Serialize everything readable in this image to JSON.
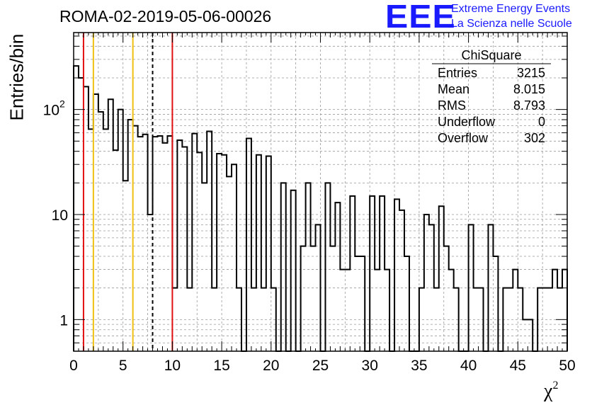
{
  "title": "ROMA-02-2019-05-06-00026",
  "logo": {
    "mark": "EEE",
    "line1": "Extreme Energy Events",
    "line2": "La Scienza nelle Scuole",
    "color": "#1a1aff"
  },
  "stats": {
    "name": "ChiSquare",
    "rows": [
      {
        "label": "Entries",
        "value": "3215"
      },
      {
        "label": "Mean",
        "value": "8.015"
      },
      {
        "label": "RMS",
        "value": "8.793"
      },
      {
        "label": "Underflow",
        "value": "0"
      },
      {
        "label": "Overflow",
        "value": "302"
      }
    ]
  },
  "chart_data": {
    "type": "bar",
    "histogram": true,
    "xlabel": "χ",
    "xlabel_sup": "2",
    "ylabel": "Entries/bin",
    "xlim": [
      0,
      50
    ],
    "ylim": [
      0.5,
      540
    ],
    "yscale": "log",
    "grid": true,
    "bin_width": 0.5,
    "xticks": [
      0,
      5,
      10,
      15,
      20,
      25,
      30,
      35,
      40,
      45,
      50
    ],
    "ytick_labels": [
      {
        "value": 1,
        "label": "1"
      },
      {
        "value": 10,
        "label": "10"
      },
      {
        "value": 100,
        "label": "10",
        "sup": "2"
      }
    ],
    "values": [
      260,
      200,
      165,
      65,
      140,
      95,
      65,
      125,
      41,
      100,
      21,
      80,
      70,
      55,
      58,
      10,
      55,
      56,
      48,
      56,
      2,
      51,
      44,
      2,
      59,
      39,
      20,
      62,
      2,
      38,
      37,
      23,
      30,
      2,
      0.5,
      53,
      2,
      37,
      2,
      36,
      2,
      0.5,
      20,
      0.5,
      17,
      0.5,
      5,
      20,
      5,
      8,
      0.5,
      20,
      5,
      13,
      3,
      3,
      15,
      4,
      4,
      0.5,
      15,
      3,
      15,
      3,
      0.5,
      14,
      11,
      4,
      0.5,
      0.5,
      2,
      10,
      8,
      2,
      12,
      5,
      3,
      2,
      0.5,
      0.5,
      8,
      2,
      2,
      0.5,
      8,
      4,
      0.5,
      2,
      2,
      3,
      2,
      1,
      1,
      0.5,
      2,
      2,
      2,
      3,
      2,
      3
    ],
    "lines": [
      {
        "x": 1,
        "color": "#e01010",
        "style": "solid"
      },
      {
        "x": 2,
        "color": "#f0c010",
        "style": "solid"
      },
      {
        "x": 6,
        "color": "#f0c010",
        "style": "solid"
      },
      {
        "x": 8,
        "color": "#000000",
        "style": "dashed"
      },
      {
        "x": 10,
        "color": "#e01010",
        "style": "solid"
      }
    ]
  }
}
